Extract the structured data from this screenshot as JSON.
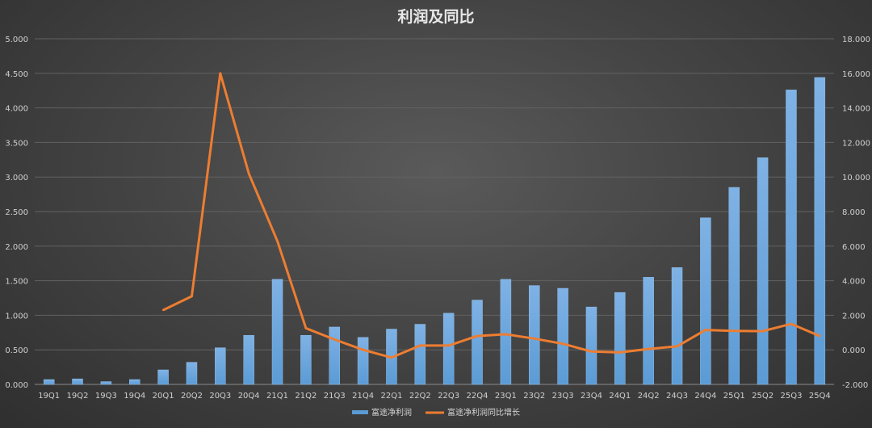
{
  "chart_data": {
    "type": "bar",
    "title": "利润及同比",
    "categories": [
      "19Q1",
      "19Q2",
      "19Q3",
      "19Q4",
      "20Q1",
      "20Q2",
      "20Q3",
      "20Q4",
      "21Q1",
      "21Q2",
      "21Q3",
      "21Q4",
      "22Q1",
      "22Q2",
      "22Q3",
      "22Q4",
      "23Q1",
      "23Q2",
      "23Q3",
      "23Q4",
      "24Q1",
      "24Q2",
      "24Q3",
      "24Q4",
      "25Q1",
      "25Q2",
      "25Q3",
      "25Q4"
    ],
    "series": [
      {
        "name": "富途净利润",
        "type": "bar",
        "axis": "left",
        "color": "#5b9bd5",
        "values": [
          0.07,
          0.08,
          0.04,
          0.07,
          0.21,
          0.32,
          0.53,
          0.71,
          1.52,
          0.71,
          0.83,
          0.68,
          0.8,
          0.87,
          1.03,
          1.22,
          1.52,
          1.43,
          1.39,
          1.12,
          1.33,
          1.55,
          1.69,
          2.41,
          2.85,
          3.28,
          4.26,
          4.44
        ]
      },
      {
        "name": "富途净利润同比增长",
        "type": "line",
        "axis": "right",
        "color": "#ed7d31",
        "values": [
          null,
          null,
          null,
          null,
          2.3,
          3.1,
          16.0,
          10.2,
          6.3,
          1.25,
          0.6,
          0.0,
          -0.45,
          0.25,
          0.25,
          0.8,
          0.9,
          0.65,
          0.35,
          -0.1,
          -0.15,
          0.05,
          0.2,
          1.15,
          1.1,
          1.08,
          1.5,
          0.8
        ]
      }
    ],
    "yticks_left": [
      "0.000",
      "0.500",
      "1.000",
      "1.500",
      "2.000",
      "2.500",
      "3.000",
      "3.500",
      "4.000",
      "4.500",
      "5.000"
    ],
    "yticks_right": [
      "-2.000",
      "0.000",
      "2.000",
      "4.000",
      "6.000",
      "8.000",
      "10.000",
      "12.000",
      "14.000",
      "16.000",
      "18.000"
    ],
    "ylim_left": [
      0,
      5
    ],
    "ylim_right": [
      -2,
      18
    ],
    "grid": true,
    "legend_position": "bottom-center"
  }
}
